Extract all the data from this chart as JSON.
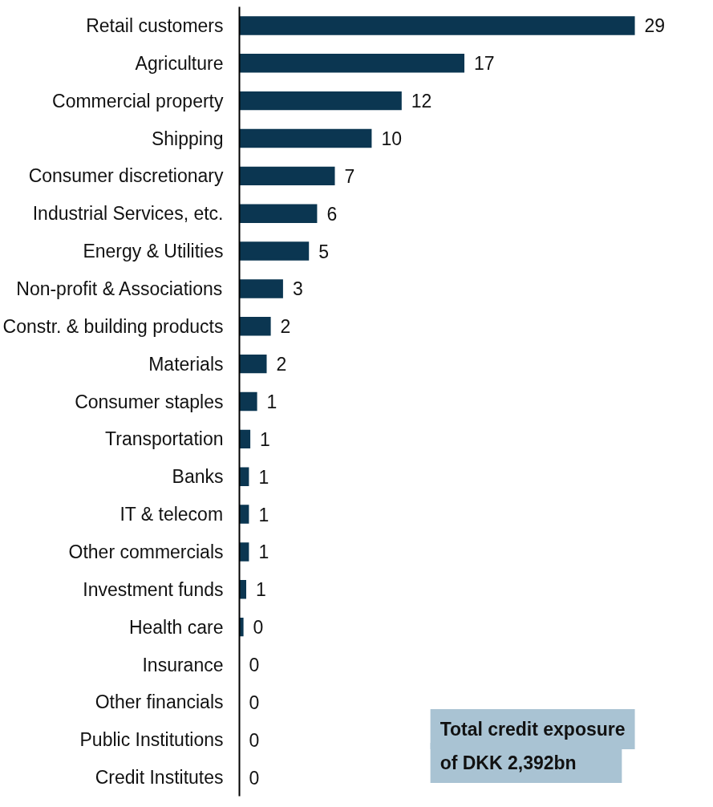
{
  "chart_data": {
    "type": "bar",
    "orientation": "horizontal",
    "categories": [
      "Retail customers",
      "Agriculture",
      "Commercial property",
      "Shipping",
      "Consumer discretionary",
      "Industrial Services, etc.",
      "Energy & Utilities",
      "Non-profit & Associations",
      "Constr. & building products",
      "Materials",
      "Consumer staples",
      "Transportation",
      "Banks",
      "IT & telecom",
      "Other commercials",
      "Investment funds",
      "Health care",
      "Insurance",
      "Other financials",
      "Public Institutions",
      "Credit Institutes"
    ],
    "values": [
      29,
      16.5,
      11.9,
      9.7,
      7.0,
      5.7,
      5.1,
      3.2,
      2.3,
      2.0,
      1.3,
      0.8,
      0.7,
      0.7,
      0.7,
      0.5,
      0.3,
      0,
      0,
      0,
      0
    ],
    "value_labels": [
      "29",
      "17",
      "12",
      "10",
      "7",
      "6",
      "5",
      "3",
      "2",
      "2",
      "1",
      "1",
      "1",
      "1",
      "1",
      "1",
      "0",
      "0",
      "0",
      "0",
      "0"
    ],
    "color": "#0b3651",
    "tick_labels": "y",
    "grid": false,
    "annotations": [
      "Total credit exposure of DKK 2,392bn"
    ]
  }
}
